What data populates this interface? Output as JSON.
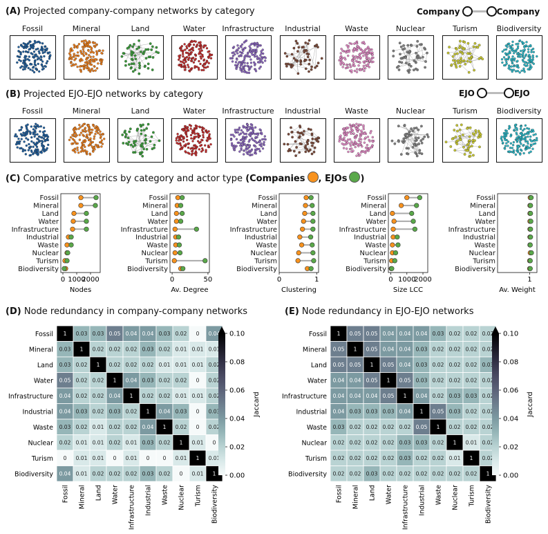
{
  "colors": {
    "companies": "#f7921e",
    "ejos": "#5aa84a",
    "Fossil": "#1f5f9e",
    "Mineral": "#f07f1a",
    "Land": "#3a9a3a",
    "Water": "#c42b2b",
    "Infrastructure": "#8b66c0",
    "Industrial": "#7a4a3a",
    "Waste": "#e58cc8",
    "Nuclear": "#7f7f7f",
    "Turism": "#c8c832",
    "Biodiversity": "#2bb8c8"
  },
  "sections": {
    "A": {
      "tag": "(A)",
      "title": "Projected company-company networks by category",
      "legend_left": "Company",
      "legend_right": "Company"
    },
    "B": {
      "tag": "(B)",
      "title": "Projected EJO-EJO networks by category",
      "legend_left": "EJO",
      "legend_right": "EJO"
    },
    "C": {
      "tag": "(C)",
      "title": "Comparative metrics by category and actor type",
      "legend_bold": "(Companies",
      "legend_sep": ", EJOs",
      "legend_end": ")"
    },
    "D": {
      "tag": "(D)",
      "title": "Node redundancy in company-company networks"
    },
    "E": {
      "tag": "(E)",
      "title": "Node redundancy in EJO-EJO networks"
    }
  },
  "categories": [
    "Fossil",
    "Mineral",
    "Land",
    "Water",
    "Infrastructure",
    "Industrial",
    "Waste",
    "Nuclear",
    "Turism",
    "Biodiversity"
  ],
  "chart_data": [
    {
      "type": "dumbbell",
      "panel": "C",
      "xlabel": "Nodes",
      "xticks": [
        0,
        1000,
        2000
      ],
      "xlim": [
        -150,
        2700
      ],
      "categories": [
        "Fossil",
        "Mineral",
        "Land",
        "Water",
        "Infrastructure",
        "Industrial",
        "Waste",
        "Nuclear",
        "Turism",
        "Biodiversity"
      ],
      "series": [
        {
          "name": "Companies",
          "values": [
            1300,
            1300,
            800,
            750,
            700,
            400,
            300,
            300,
            150,
            200
          ]
        },
        {
          "name": "EJOs",
          "values": [
            2400,
            2350,
            1700,
            1700,
            1700,
            600,
            600,
            350,
            300,
            100
          ]
        }
      ]
    },
    {
      "type": "dumbbell",
      "panel": "C",
      "xlabel": "Av. Degree",
      "xticks": [
        0,
        50
      ],
      "xlim": [
        -3,
        52
      ],
      "categories": [
        "Fossil",
        "Mineral",
        "Land",
        "Water",
        "Infrastructure",
        "Industrial",
        "Waste",
        "Nuclear",
        "Turism",
        "Biodiversity"
      ],
      "series": [
        {
          "name": "Companies",
          "values": [
            8,
            7,
            6,
            6,
            4,
            5,
            5,
            4,
            3,
            12
          ]
        },
        {
          "name": "EJOs",
          "values": [
            14,
            12,
            14,
            12,
            34,
            9,
            10,
            11,
            46,
            15
          ]
        }
      ]
    },
    {
      "type": "dumbbell",
      "panel": "C",
      "xlabel": "Clustering",
      "xticks": [
        0,
        1
      ],
      "xlim": [
        0,
        1.05
      ],
      "categories": [
        "Fossil",
        "Mineral",
        "Land",
        "Water",
        "Infrastructure",
        "Industrial",
        "Waste",
        "Nuclear",
        "Turism",
        "Biodiversity"
      ],
      "series": [
        {
          "name": "Companies",
          "values": [
            0.72,
            0.7,
            0.68,
            0.65,
            0.62,
            0.55,
            0.6,
            0.52,
            0.5,
            0.75
          ]
        },
        {
          "name": "EJOs",
          "values": [
            0.85,
            0.88,
            0.9,
            0.9,
            0.9,
            0.84,
            0.88,
            0.9,
            0.92,
            0.85
          ]
        }
      ]
    },
    {
      "type": "dumbbell",
      "panel": "C",
      "xlabel": "Size LCC",
      "xticks": [
        0,
        1000,
        2000
      ],
      "xlim": [
        -150,
        2300
      ],
      "categories": [
        "Fossil",
        "Mineral",
        "Land",
        "Water",
        "Infrastructure",
        "Industrial",
        "Waste",
        "Nuclear",
        "Turism",
        "Biodiversity"
      ],
      "series": [
        {
          "name": "Companies",
          "values": [
            1000,
            650,
            100,
            200,
            150,
            150,
            100,
            100,
            50,
            30
          ]
        },
        {
          "name": "EJOs",
          "values": [
            1800,
            1600,
            1300,
            1400,
            1500,
            400,
            450,
            300,
            250,
            60
          ]
        }
      ]
    },
    {
      "type": "dumbbell",
      "panel": "C",
      "xlabel": "Av. Weight",
      "xticks": [
        1
      ],
      "xlim": [
        -0.1,
        1.25
      ],
      "categories": [
        "Fossil",
        "Mineral",
        "Land",
        "Water",
        "Infrastructure",
        "Industrial",
        "Waste",
        "Nuclear",
        "Turism",
        "Biodiversity"
      ],
      "series": [
        {
          "name": "Companies",
          "values": [
            1.02,
            1.01,
            1.01,
            1.01,
            1.01,
            1.01,
            1.01,
            1.02,
            1.0,
            1.0
          ]
        },
        {
          "name": "EJOs",
          "values": [
            1.05,
            1.03,
            1.03,
            1.04,
            1.03,
            1.03,
            1.02,
            1.06,
            1.02,
            1.02
          ]
        }
      ]
    },
    {
      "type": "heatmap",
      "panel": "D",
      "colorbar_label": "Jaccard",
      "colorbar_ticks": [
        "0.00",
        "0.02",
        "0.04",
        "0.06",
        "0.08",
        "0.10"
      ],
      "vmin": 0,
      "vmax": 0.1,
      "labels": [
        "Fossil",
        "Mineral",
        "Land",
        "Water",
        "Infrastructure",
        "Industrial",
        "Waste",
        "Nuclear",
        "Turism",
        "Biodiversity"
      ],
      "values": [
        [
          "1",
          "0.03",
          "0.03",
          "0.05",
          "0.04",
          "0.04",
          "0.03",
          "0.02",
          "0",
          "0.04"
        ],
        [
          "0.03",
          "1",
          "0.02",
          "0.02",
          "0.02",
          "0.03",
          "0.02",
          "0.01",
          "0.01",
          "0.01"
        ],
        [
          "0.03",
          "0.02",
          "1",
          "0.02",
          "0.02",
          "0.02",
          "0.01",
          "0.01",
          "0.01",
          "0.02"
        ],
        [
          "0.05",
          "0.02",
          "0.02",
          "1",
          "0.04",
          "0.03",
          "0.02",
          "0.02",
          "0",
          "0.02"
        ],
        [
          "0.04",
          "0.02",
          "0.02",
          "0.04",
          "1",
          "0.02",
          "0.02",
          "0.01",
          "0.01",
          "0.02"
        ],
        [
          "0.04",
          "0.03",
          "0.02",
          "0.03",
          "0.02",
          "1",
          "0.04",
          "0.03",
          "0",
          "0.03"
        ],
        [
          "0.03",
          "0.02",
          "0.01",
          "0.02",
          "0.02",
          "0.04",
          "1",
          "0.02",
          "0",
          "0.02"
        ],
        [
          "0.02",
          "0.01",
          "0.01",
          "0.02",
          "0.01",
          "0.03",
          "0.02",
          "1",
          "0.01",
          "0"
        ],
        [
          "0",
          "0.01",
          "0.01",
          "0",
          "0.01",
          "0",
          "0",
          "0.01",
          "1",
          "0.01"
        ],
        [
          "0.04",
          "0.01",
          "0.02",
          "0.02",
          "0.02",
          "0.03",
          "0.02",
          "0",
          "0.01",
          "1"
        ]
      ]
    },
    {
      "type": "heatmap",
      "panel": "E",
      "colorbar_label": "Jaccard",
      "colorbar_ticks": [
        "0.00",
        "0.02",
        "0.04",
        "0.06",
        "0.08",
        "0.10"
      ],
      "vmin": 0,
      "vmax": 0.1,
      "labels": [
        "Fossil",
        "Mineral",
        "Land",
        "Water",
        "Infrastructure",
        "Industrial",
        "Waste",
        "Nuclear",
        "Turism",
        "Biodiversity"
      ],
      "values": [
        [
          "1",
          "0.05",
          "0.05",
          "0.04",
          "0.04",
          "0.04",
          "0.03",
          "0.02",
          "0.02",
          "0.02"
        ],
        [
          "0.05",
          "1",
          "0.05",
          "0.04",
          "0.04",
          "0.03",
          "0.02",
          "0.02",
          "0.02",
          "0.02"
        ],
        [
          "0.05",
          "0.05",
          "1",
          "0.05",
          "0.04",
          "0.03",
          "0.02",
          "0.02",
          "0.02",
          "0.03"
        ],
        [
          "0.04",
          "0.04",
          "0.05",
          "1",
          "0.05",
          "0.03",
          "0.02",
          "0.02",
          "0.02",
          "0.02"
        ],
        [
          "0.04",
          "0.04",
          "0.04",
          "0.05",
          "1",
          "0.04",
          "0.02",
          "0.03",
          "0.03",
          "0.02"
        ],
        [
          "0.04",
          "0.03",
          "0.03",
          "0.03",
          "0.04",
          "1",
          "0.05",
          "0.03",
          "0.02",
          "0.02"
        ],
        [
          "0.03",
          "0.02",
          "0.02",
          "0.02",
          "0.02",
          "0.05",
          "1",
          "0.02",
          "0.02",
          "0.02"
        ],
        [
          "0.02",
          "0.02",
          "0.02",
          "0.02",
          "0.03",
          "0.03",
          "0.02",
          "1",
          "0.01",
          "0.02"
        ],
        [
          "0.02",
          "0.02",
          "0.02",
          "0.02",
          "0.03",
          "0.02",
          "0.02",
          "0.01",
          "1",
          "0.02"
        ],
        [
          "0.02",
          "0.02",
          "0.03",
          "0.02",
          "0.02",
          "0.02",
          "0.02",
          "0.02",
          "0.02",
          "1"
        ]
      ]
    }
  ]
}
